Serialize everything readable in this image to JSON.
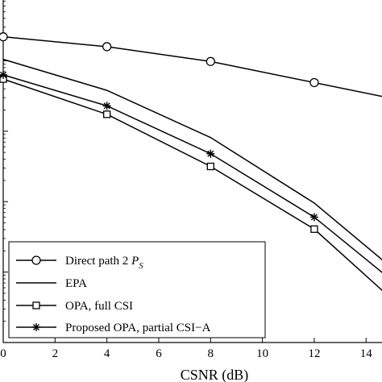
{
  "chart_data": {
    "type": "line",
    "title": "",
    "xlabel": "CSNR (dB)",
    "ylabel": "",
    "xlim": [
      0,
      14.8
    ],
    "ylim_decades": [
      -5,
      0
    ],
    "log_y": true,
    "grid": false,
    "x_ticks": [
      0,
      2,
      4,
      6,
      8,
      10,
      12,
      14
    ],
    "legend_position": "bottom-left",
    "series": [
      {
        "name": "Direct path 2 P_S",
        "legend_main": "Direct path 2 ",
        "legend_p": "P",
        "legend_sub": "S",
        "marker": "circle",
        "x": [
          0,
          4,
          8,
          12,
          14.8
        ],
        "log10_y": [
          -0.66,
          -0.8,
          -1.01,
          -1.31,
          -1.52
        ]
      },
      {
        "name": "EPA",
        "legend_main": "EPA",
        "marker": "none",
        "x": [
          0,
          4,
          8,
          12,
          14.8
        ],
        "log10_y": [
          -0.98,
          -1.42,
          -2.09,
          -3.02,
          -3.88
        ]
      },
      {
        "name": "OPA, full CSI",
        "legend_main": "OPA, full CSI",
        "marker": "square",
        "x": [
          0,
          4,
          8,
          12,
          14.8
        ],
        "log10_y": [
          -1.26,
          -1.76,
          -2.5,
          -3.39,
          -4.32
        ]
      },
      {
        "name": "Proposed OPA, partial CSI-A",
        "legend_main": "Proposed OPA, partial CSI−A",
        "marker": "star",
        "x": [
          0,
          4,
          8,
          12,
          14.8
        ],
        "log10_y": [
          -1.2,
          -1.64,
          -2.32,
          -3.22,
          -4.06
        ]
      }
    ]
  }
}
